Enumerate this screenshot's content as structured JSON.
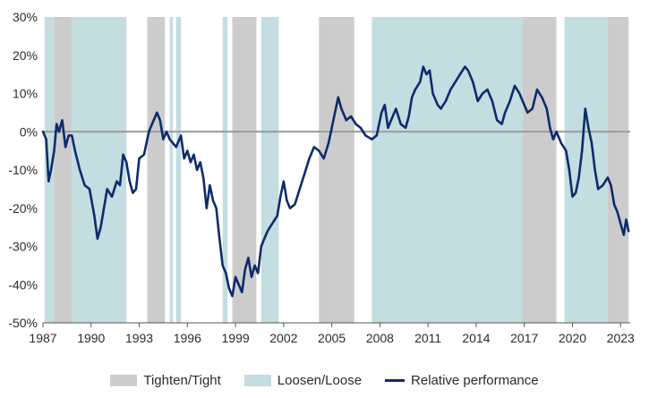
{
  "chart_data": {
    "type": "line",
    "title": "",
    "xlabel": "",
    "ylabel": "",
    "xlim": [
      1987.0,
      2023.6
    ],
    "ylim": [
      -50,
      30
    ],
    "y_ticks": [
      -50,
      -40,
      -30,
      -20,
      -10,
      0,
      10,
      20,
      30
    ],
    "y_tick_labels": [
      "-50%",
      "-40%",
      "-30%",
      "-20%",
      "-10%",
      "0%",
      "10%",
      "20%",
      "30%"
    ],
    "x_ticks": [
      1987,
      1990,
      1993,
      1996,
      1999,
      2002,
      2005,
      2008,
      2011,
      2014,
      2017,
      2020,
      2023
    ],
    "x_tick_labels": [
      "1987",
      "1990",
      "1993",
      "1996",
      "1999",
      "2002",
      "2005",
      "2008",
      "2011",
      "2014",
      "2017",
      "2020",
      "2023"
    ],
    "grid": false,
    "zero_line": true,
    "legend_position": "bottom",
    "colors": {
      "tighten": "#cccccc",
      "loosen": "#c3dde0",
      "line": "#0d2b6b",
      "zero": "#999999",
      "axis": "#555555"
    },
    "legend": [
      {
        "label": "Tighten/Tight",
        "kind": "tighten"
      },
      {
        "label": "Loosen/Loose",
        "kind": "loosen"
      },
      {
        "label": "Relative performance",
        "kind": "line"
      }
    ],
    "regime_bands": [
      {
        "kind": "loosen",
        "start": 1987.1,
        "end": 1987.7
      },
      {
        "kind": "tighten",
        "start": 1987.7,
        "end": 1988.8
      },
      {
        "kind": "loosen",
        "start": 1988.8,
        "end": 1992.2
      },
      {
        "kind": "tighten",
        "start": 1993.5,
        "end": 1994.6
      },
      {
        "kind": "loosen",
        "start": 1994.9,
        "end": 1995.1
      },
      {
        "kind": "loosen",
        "start": 1995.3,
        "end": 1995.6
      },
      {
        "kind": "loosen",
        "start": 1998.2,
        "end": 1998.5
      },
      {
        "kind": "tighten",
        "start": 1998.8,
        "end": 2000.3
      },
      {
        "kind": "loosen",
        "start": 2000.6,
        "end": 2001.7
      },
      {
        "kind": "tighten",
        "start": 2004.2,
        "end": 2006.4
      },
      {
        "kind": "loosen",
        "start": 2007.5,
        "end": 2016.9
      },
      {
        "kind": "tighten",
        "start": 2016.9,
        "end": 2019.0
      },
      {
        "kind": "loosen",
        "start": 2019.5,
        "end": 2022.2
      },
      {
        "kind": "tighten",
        "start": 2022.2,
        "end": 2023.5
      }
    ],
    "series": [
      {
        "name": "Relative performance",
        "points": [
          [
            1987.0,
            0
          ],
          [
            1987.2,
            -2
          ],
          [
            1987.35,
            -13
          ],
          [
            1987.5,
            -10
          ],
          [
            1987.7,
            -5
          ],
          [
            1987.85,
            2
          ],
          [
            1988.0,
            0
          ],
          [
            1988.2,
            3
          ],
          [
            1988.4,
            -4
          ],
          [
            1988.6,
            -1
          ],
          [
            1988.8,
            -1
          ],
          [
            1989.0,
            -5
          ],
          [
            1989.3,
            -10
          ],
          [
            1989.6,
            -14
          ],
          [
            1989.9,
            -15
          ],
          [
            1990.2,
            -22
          ],
          [
            1990.4,
            -28
          ],
          [
            1990.6,
            -25
          ],
          [
            1990.8,
            -20
          ],
          [
            1991.0,
            -15
          ],
          [
            1991.3,
            -17
          ],
          [
            1991.6,
            -13
          ],
          [
            1991.8,
            -14
          ],
          [
            1992.0,
            -6
          ],
          [
            1992.2,
            -8
          ],
          [
            1992.4,
            -13
          ],
          [
            1992.6,
            -16
          ],
          [
            1992.8,
            -15
          ],
          [
            1993.0,
            -7
          ],
          [
            1993.3,
            -6
          ],
          [
            1993.6,
            0
          ],
          [
            1993.9,
            3
          ],
          [
            1994.1,
            5
          ],
          [
            1994.3,
            3
          ],
          [
            1994.5,
            -2
          ],
          [
            1994.7,
            0
          ],
          [
            1994.9,
            -2
          ],
          [
            1995.1,
            -3
          ],
          [
            1995.3,
            -4
          ],
          [
            1995.6,
            -1
          ],
          [
            1995.8,
            -7
          ],
          [
            1996.0,
            -5
          ],
          [
            1996.2,
            -8
          ],
          [
            1996.4,
            -6
          ],
          [
            1996.6,
            -10
          ],
          [
            1996.8,
            -8
          ],
          [
            1997.0,
            -12
          ],
          [
            1997.2,
            -20
          ],
          [
            1997.4,
            -14
          ],
          [
            1997.6,
            -18
          ],
          [
            1997.8,
            -20
          ],
          [
            1998.0,
            -28
          ],
          [
            1998.2,
            -35
          ],
          [
            1998.4,
            -37
          ],
          [
            1998.6,
            -41
          ],
          [
            1998.8,
            -43
          ],
          [
            1999.0,
            -38
          ],
          [
            1999.2,
            -40
          ],
          [
            1999.4,
            -42
          ],
          [
            1999.6,
            -36
          ],
          [
            1999.8,
            -33
          ],
          [
            2000.0,
            -38
          ],
          [
            2000.2,
            -35
          ],
          [
            2000.4,
            -37
          ],
          [
            2000.6,
            -30
          ],
          [
            2000.8,
            -28
          ],
          [
            2001.0,
            -26
          ],
          [
            2001.3,
            -24
          ],
          [
            2001.6,
            -22
          ],
          [
            2001.8,
            -17
          ],
          [
            2002.0,
            -13
          ],
          [
            2002.2,
            -18
          ],
          [
            2002.4,
            -20
          ],
          [
            2002.7,
            -19
          ],
          [
            2003.0,
            -15
          ],
          [
            2003.3,
            -11
          ],
          [
            2003.6,
            -7
          ],
          [
            2003.9,
            -4
          ],
          [
            2004.2,
            -5
          ],
          [
            2004.5,
            -7
          ],
          [
            2004.8,
            -3
          ],
          [
            2005.0,
            1
          ],
          [
            2005.2,
            5
          ],
          [
            2005.4,
            9
          ],
          [
            2005.6,
            6
          ],
          [
            2005.9,
            3
          ],
          [
            2006.2,
            4
          ],
          [
            2006.5,
            2
          ],
          [
            2006.8,
            1
          ],
          [
            2007.1,
            -1
          ],
          [
            2007.5,
            -2
          ],
          [
            2007.8,
            -1
          ],
          [
            2008.1,
            5
          ],
          [
            2008.3,
            7
          ],
          [
            2008.5,
            1
          ],
          [
            2008.7,
            3
          ],
          [
            2009.0,
            6
          ],
          [
            2009.3,
            2
          ],
          [
            2009.6,
            1
          ],
          [
            2009.8,
            4
          ],
          [
            2010.0,
            9
          ],
          [
            2010.2,
            11
          ],
          [
            2010.5,
            13
          ],
          [
            2010.7,
            17
          ],
          [
            2010.9,
            15
          ],
          [
            2011.1,
            16
          ],
          [
            2011.3,
            10
          ],
          [
            2011.6,
            7
          ],
          [
            2011.8,
            6
          ],
          [
            2012.1,
            8
          ],
          [
            2012.4,
            11
          ],
          [
            2012.7,
            13
          ],
          [
            2013.0,
            15
          ],
          [
            2013.3,
            17
          ],
          [
            2013.5,
            16
          ],
          [
            2013.8,
            13
          ],
          [
            2014.1,
            8
          ],
          [
            2014.4,
            10
          ],
          [
            2014.7,
            11
          ],
          [
            2015.0,
            8
          ],
          [
            2015.3,
            3
          ],
          [
            2015.6,
            2
          ],
          [
            2015.8,
            5
          ],
          [
            2016.1,
            8
          ],
          [
            2016.4,
            12
          ],
          [
            2016.7,
            10
          ],
          [
            2016.9,
            8
          ],
          [
            2017.2,
            5
          ],
          [
            2017.5,
            6
          ],
          [
            2017.8,
            11
          ],
          [
            2018.1,
            9
          ],
          [
            2018.4,
            6
          ],
          [
            2018.6,
            1
          ],
          [
            2018.8,
            -2
          ],
          [
            2019.0,
            0
          ],
          [
            2019.3,
            -3
          ],
          [
            2019.6,
            -5
          ],
          [
            2019.8,
            -10
          ],
          [
            2020.0,
            -17
          ],
          [
            2020.2,
            -16
          ],
          [
            2020.4,
            -12
          ],
          [
            2020.6,
            -5
          ],
          [
            2020.8,
            6
          ],
          [
            2021.0,
            1
          ],
          [
            2021.2,
            -3
          ],
          [
            2021.4,
            -10
          ],
          [
            2021.6,
            -15
          ],
          [
            2021.9,
            -14
          ],
          [
            2022.2,
            -12
          ],
          [
            2022.4,
            -14
          ],
          [
            2022.6,
            -19
          ],
          [
            2022.8,
            -21
          ],
          [
            2023.0,
            -24
          ],
          [
            2023.2,
            -27
          ],
          [
            2023.35,
            -23
          ],
          [
            2023.5,
            -26
          ]
        ]
      }
    ]
  }
}
